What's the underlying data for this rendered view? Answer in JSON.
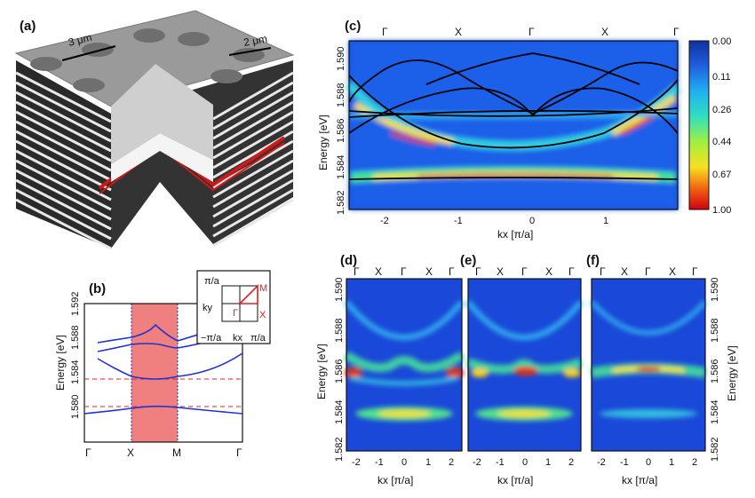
{
  "figure": {
    "panel_a": {
      "label": "(a)",
      "scale_labels": [
        "3 μm",
        "2 μm"
      ]
    },
    "panel_b": {
      "label": "(b)",
      "y_axis_label": "Energy [eV]",
      "y_ticks": [
        "1.592",
        "1.588",
        "1.584",
        "1.580"
      ],
      "x_ticks": [
        "Γ",
        "X",
        "M",
        "Γ"
      ],
      "inset": {
        "top_label": "π/a",
        "left_label": "−π/a",
        "right_label": "π/a",
        "ky_label": "ky",
        "kx_label": "kx",
        "points": [
          "Γ",
          "X",
          "M"
        ]
      }
    },
    "panel_c": {
      "label": "(c)",
      "y_axis_label": "Energy [eV]",
      "x_axis_label": "kx [π/a]",
      "y_ticks": [
        "1.590",
        "1.588",
        "1.586",
        "1.584",
        "1.582"
      ],
      "x_ticks": [
        "-2",
        "-1",
        "0",
        "1"
      ],
      "top_ticks": [
        "Γ",
        "X",
        "Γ",
        "X",
        "Γ"
      ],
      "colorbar_ticks": [
        "0.00",
        "0.11",
        "0.26",
        "0.44",
        "0.67",
        "1.00"
      ]
    },
    "panel_d": {
      "label": "(d)",
      "top_ticks": [
        "Γ",
        "X",
        "Γ",
        "X",
        "Γ"
      ],
      "x_ticks": [
        "-2",
        "-1",
        "0",
        "1",
        "2"
      ],
      "x_axis_label": "kx [π/a]"
    },
    "panel_e": {
      "label": "(e)",
      "top_ticks": [
        "Γ",
        "X",
        "Γ",
        "X",
        "Γ"
      ],
      "x_ticks": [
        "-2",
        "-1",
        "0",
        "1",
        "2"
      ],
      "x_axis_label": "kx [π/a]"
    },
    "panel_f": {
      "label": "(f)",
      "top_ticks": [
        "Γ",
        "X",
        "Γ",
        "X",
        "Γ"
      ],
      "x_ticks": [
        "-2",
        "-1",
        "0",
        "1",
        "2"
      ],
      "x_axis_label": "kx [π/a]"
    },
    "lower_y_axis_label": "Energy [eV]",
    "lower_y_ticks": [
      "1.590",
      "1.588",
      "1.586",
      "1.584",
      "1.582"
    ],
    "right_y_axis_label": "Energy [eV]",
    "colors": {
      "red_highlight": "#f08080",
      "band_blue": "#2233cc",
      "dashed_red": "#e02020",
      "layer_red": "#d01818"
    }
  }
}
